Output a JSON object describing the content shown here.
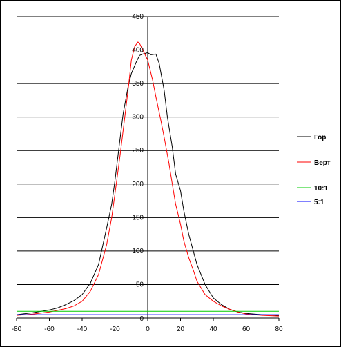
{
  "chart_data": {
    "type": "line",
    "title": "",
    "xlabel": "",
    "ylabel": "",
    "xlim": [
      -80,
      80
    ],
    "ylim": [
      0,
      450
    ],
    "x_ticks": [
      -80,
      -60,
      -40,
      -20,
      0,
      20,
      40,
      60,
      80
    ],
    "y_ticks": [
      50,
      100,
      150,
      200,
      250,
      300,
      350,
      400,
      450
    ],
    "y_zero_label": "0",
    "grid": "horizontal",
    "legend_position": "right",
    "series": [
      {
        "name": "Гор",
        "color": "#000000",
        "x": [
          -80,
          -70,
          -60,
          -55,
          -50,
          -45,
          -40,
          -35,
          -30,
          -25,
          -22,
          -20,
          -17,
          -15,
          -12,
          -10,
          -7,
          -5,
          -3,
          0,
          2,
          5,
          7,
          10,
          12,
          15,
          17,
          20,
          22,
          25,
          30,
          35,
          40,
          45,
          50,
          55,
          60,
          65,
          70,
          80
        ],
        "y": [
          5,
          8,
          12,
          15,
          20,
          26,
          35,
          52,
          80,
          135,
          170,
          205,
          265,
          305,
          345,
          365,
          382,
          392,
          394,
          396,
          393,
          394,
          380,
          340,
          300,
          255,
          215,
          190,
          160,
          125,
          80,
          50,
          30,
          20,
          13,
          9,
          7,
          6,
          5,
          4
        ]
      },
      {
        "name": "Верт",
        "color": "#ff0000",
        "x": [
          -80,
          -70,
          -60,
          -50,
          -45,
          -40,
          -35,
          -30,
          -25,
          -22,
          -20,
          -17,
          -15,
          -12,
          -10,
          -8,
          -6,
          -5,
          -3,
          0,
          3,
          5,
          8,
          10,
          13,
          15,
          17,
          20,
          22,
          25,
          28,
          30,
          35,
          40,
          45,
          50,
          55,
          60,
          70,
          80
        ],
        "y": [
          4,
          6,
          9,
          14,
          18,
          25,
          40,
          65,
          110,
          150,
          185,
          240,
          280,
          340,
          385,
          405,
          412,
          410,
          400,
          385,
          355,
          330,
          295,
          270,
          230,
          200,
          170,
          140,
          115,
          90,
          70,
          55,
          35,
          25,
          18,
          13,
          9,
          6,
          4,
          3
        ]
      },
      {
        "name": "10:1",
        "color": "#00cc00",
        "x": [
          -80,
          80
        ],
        "y": [
          10,
          10
        ]
      },
      {
        "name": "5:1",
        "color": "#0000ff",
        "x": [
          -80,
          80
        ],
        "y": [
          5,
          5
        ]
      }
    ]
  }
}
